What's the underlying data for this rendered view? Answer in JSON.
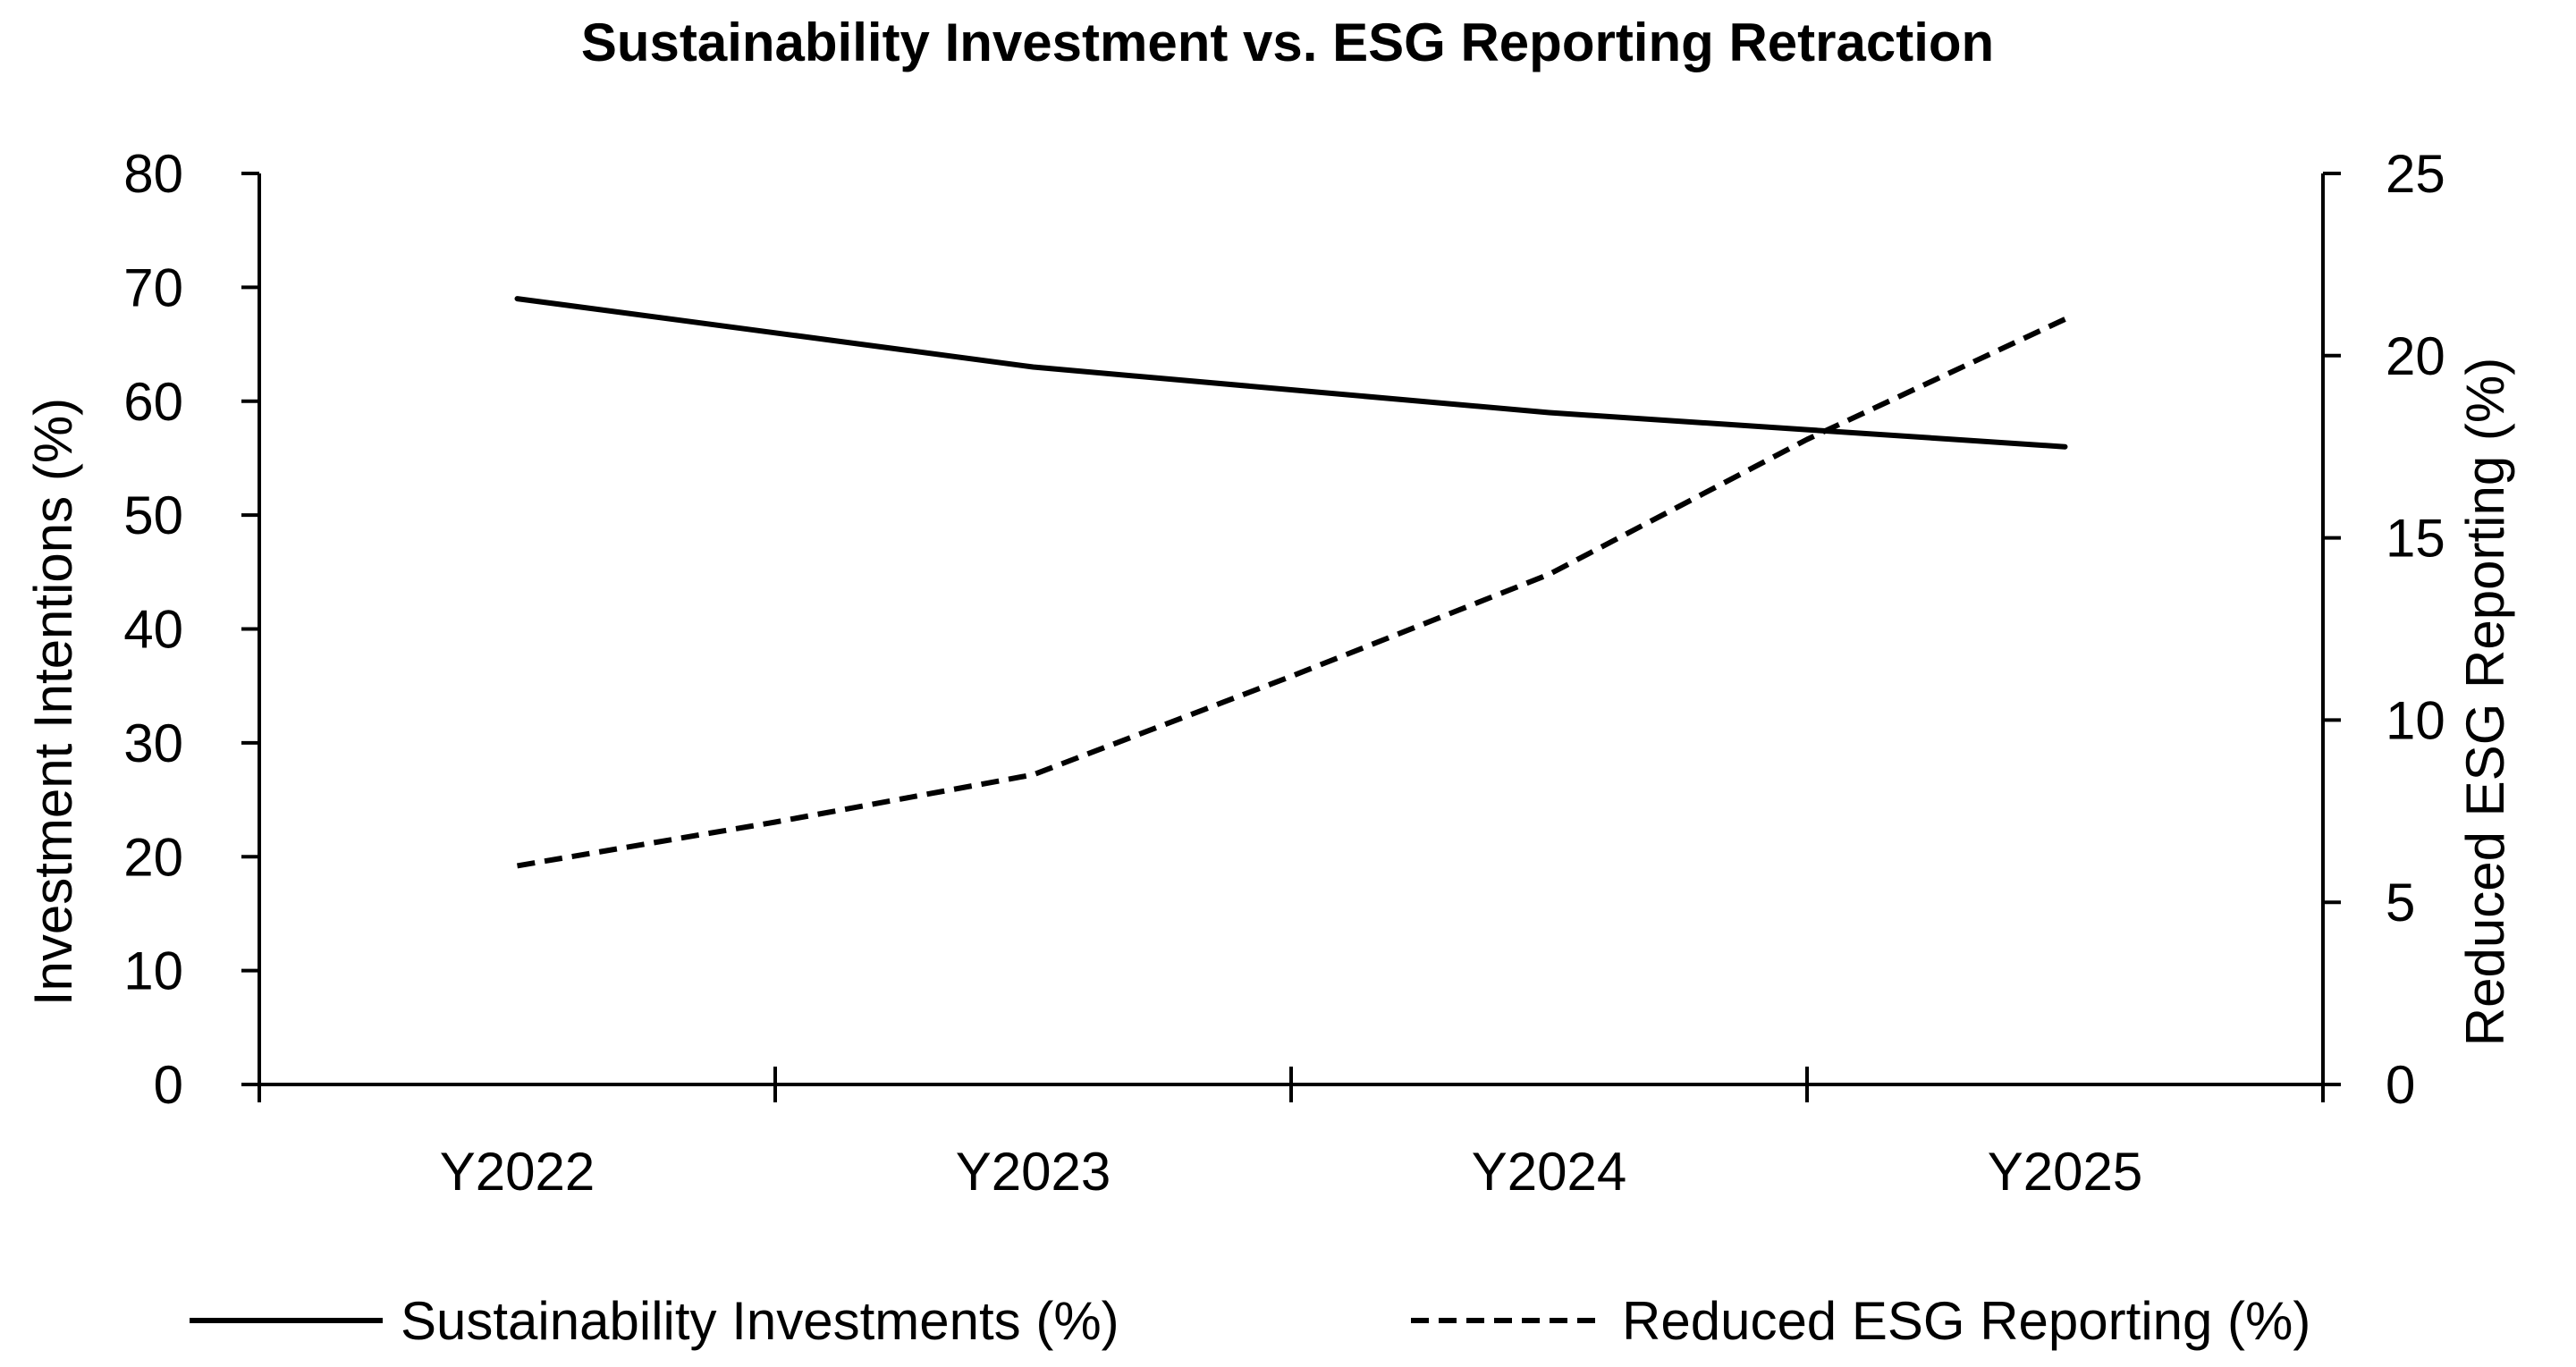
{
  "chart_data": {
    "type": "line",
    "title": "Sustainability Investment vs. ESG Reporting Retraction",
    "categories": [
      "Y2022",
      "Y2023",
      "Y2024",
      "Y2025"
    ],
    "series": [
      {
        "name": "Sustainability Investments (%)",
        "axis": "left",
        "line_style": "solid",
        "x": [
          0,
          0.5,
          1,
          1.5,
          2,
          2.5,
          3
        ],
        "values": [
          69,
          66,
          63,
          61,
          59,
          57.5,
          56
        ]
      },
      {
        "name": "Reduced ESG Reporting (%)",
        "axis": "right",
        "line_style": "dashed",
        "x": [
          0,
          0.5,
          1,
          1.5,
          2,
          2.5,
          3
        ],
        "values": [
          6,
          7.2,
          8.5,
          11.2,
          14,
          17.7,
          21
        ]
      }
    ],
    "y_left": {
      "label": "Investment Intentions (%)",
      "ylim": [
        0,
        80
      ],
      "ticks": [
        "0",
        "10",
        "20",
        "30",
        "40",
        "50",
        "60",
        "70",
        "80"
      ]
    },
    "y_right": {
      "label": "Reduced ESG Reporting (%)",
      "ylim": [
        0,
        25
      ],
      "ticks": [
        "0",
        "5",
        "10",
        "15",
        "20",
        "25"
      ]
    },
    "legend": {
      "position": "bottom",
      "items": [
        "Sustainability Investments (%)",
        "Reduced ESG Reporting (%)"
      ]
    },
    "grid": false,
    "colors": {
      "line": "#000000",
      "background": "#ffffff"
    }
  }
}
